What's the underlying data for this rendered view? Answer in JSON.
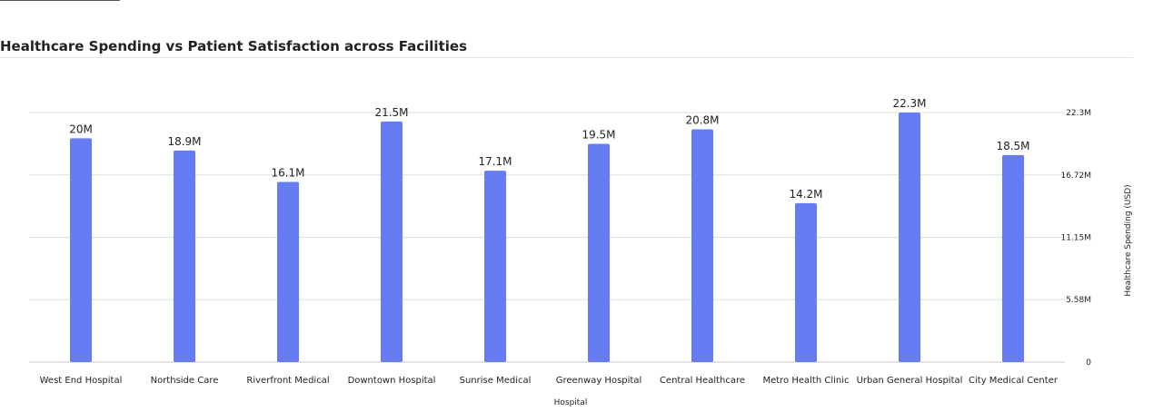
{
  "chart_data": {
    "type": "bar",
    "title": "Healthcare Spending vs Patient Satisfaction across Facilities",
    "xlabel": "Hospital",
    "ylabel": "Healthcare Spending (USD)",
    "categories": [
      "West End Hospital",
      "Northside Care",
      "Riverfront Medical",
      "Downtown Hospital",
      "Sunrise Medical",
      "Greenway Hospital",
      "Central Healthcare",
      "Metro Health Clinic",
      "Urban General Hospital",
      "City Medical Center"
    ],
    "values": [
      20000000,
      18900000,
      16100000,
      21500000,
      17100000,
      19500000,
      20800000,
      14200000,
      22300000,
      18500000
    ],
    "value_labels": [
      "20M",
      "18.9M",
      "16.1M",
      "21.5M",
      "17.1M",
      "19.5M",
      "20.8M",
      "14.2M",
      "22.3M",
      "18.5M"
    ],
    "ylim": [
      0,
      22300000
    ],
    "yticks": [
      0,
      5580000,
      11150000,
      16720000,
      22300000
    ],
    "ytick_labels": [
      "0",
      "5.58M",
      "11.15M",
      "16.72M",
      "22.3M"
    ],
    "y_axis_side": "right",
    "grid": true,
    "bar_color": "#667cf2"
  }
}
